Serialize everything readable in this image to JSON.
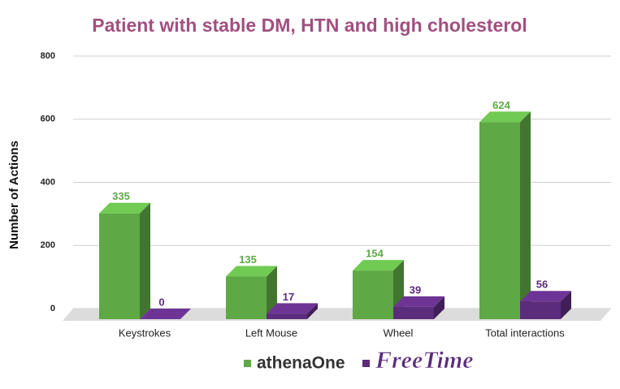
{
  "chart_data": {
    "type": "bar3d",
    "title": "Patient with stable DM, HTN and high cholesterol",
    "y_label": "Number of Actions",
    "categories": [
      "Keystrokes",
      "Left Mouse",
      "Wheel",
      "Total interactions"
    ],
    "series": [
      {
        "name": "athenaOne",
        "color": "#5ea845",
        "values": [
          335,
          135,
          154,
          624
        ]
      },
      {
        "name": "FreeTime",
        "color": "#5b2b7c",
        "values": [
          0,
          17,
          39,
          56
        ]
      }
    ],
    "ylim": [
      0,
      800
    ],
    "yticks": [
      0,
      200,
      400,
      600,
      800
    ],
    "grid": true,
    "legend": "bottom"
  }
}
